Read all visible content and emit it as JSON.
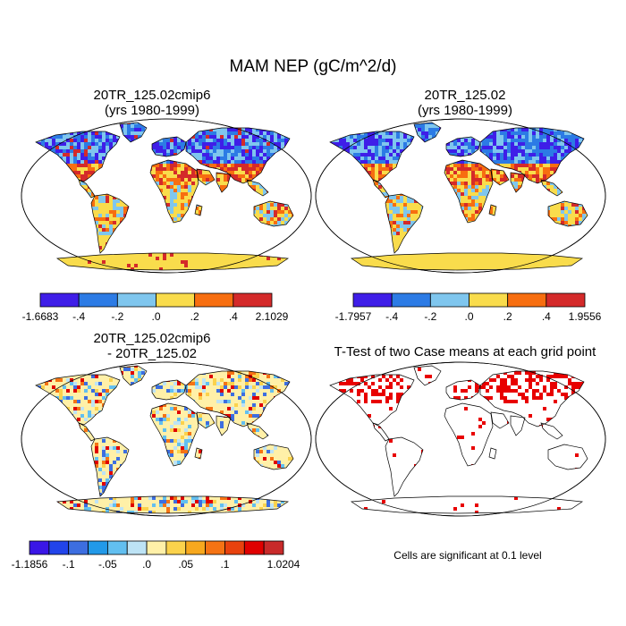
{
  "figure": {
    "title": "MAM NEP (gC/m^2/d)",
    "note": "Cells are significant at 0.1 level"
  },
  "panels": [
    {
      "id": "case1",
      "title_line1": "20TR_125.02cmip6",
      "title_line2": "(yrs 1980-1999)",
      "colorbar": {
        "colors": [
          "#3f1ee8",
          "#2c7be5",
          "#7fc6ee",
          "#f9dc4c",
          "#f76e10",
          "#d42a2a"
        ],
        "labels": [
          "-1.6683",
          "-.4",
          "-.2",
          ".0",
          ".2",
          ".4",
          "2.1029"
        ]
      }
    },
    {
      "id": "case2",
      "title_line1": "20TR_125.02",
      "title_line2": "(yrs 1980-1999)",
      "colorbar": {
        "colors": [
          "#3f1ee8",
          "#2c7be5",
          "#7fc6ee",
          "#f9dc4c",
          "#f76e10",
          "#d42a2a"
        ],
        "labels": [
          "-1.7957",
          "-.4",
          "-.2",
          ".0",
          ".2",
          ".4",
          "1.9556"
        ]
      }
    },
    {
      "id": "difference",
      "title_line1": "20TR_125.02cmip6",
      "title_line2": "- 20TR_125.02",
      "colorbar": {
        "colors": [
          "#3a16e6",
          "#2244ea",
          "#3d6ee0",
          "#2299e8",
          "#62bff0",
          "#bde3f5",
          "#fff0a8",
          "#fbd24c",
          "#f7a81e",
          "#f57314",
          "#e8420e",
          "#e00000",
          "#c82a2a"
        ],
        "labels": [
          "-1.1856",
          "-.1",
          "-.05",
          ".0",
          ".05",
          ".1",
          "1.0204"
        ]
      }
    },
    {
      "id": "ttest",
      "title_line1": "T-Test of two Case means at each grid point",
      "title_line2": ""
    }
  ]
}
